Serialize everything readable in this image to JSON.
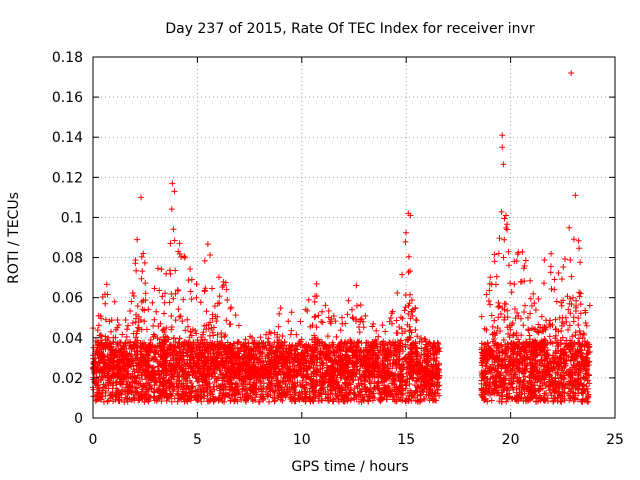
{
  "chart_data": {
    "type": "scatter",
    "title": "Day 237 of 2015, Rate Of TEC Index for receiver invr",
    "xlabel": "GPS time / hours",
    "ylabel": "ROTI / TECUs",
    "xlim": [
      0,
      25
    ],
    "ylim": [
      0,
      0.18
    ],
    "xticks": [
      "0",
      "5",
      "10",
      "15",
      "20",
      "25"
    ],
    "yticks": [
      "0",
      "0.02",
      "0.04",
      "0.06",
      "0.08",
      "0.1",
      "0.12",
      "0.14",
      "0.16",
      "0.18"
    ],
    "xtick_values": [
      0,
      5,
      10,
      15,
      20,
      25
    ],
    "ytick_values": [
      0,
      0.02,
      0.04,
      0.06,
      0.08,
      0.1,
      0.12,
      0.14,
      0.16,
      0.18
    ],
    "grid": true,
    "marker": "+",
    "color": "#ff0000",
    "segments": [
      {
        "start": 0.0,
        "end": 16.6
      },
      {
        "start": 18.6,
        "end": 23.8
      }
    ],
    "envelope": [
      [
        0.0,
        0.045
      ],
      [
        0.3,
        0.07
      ],
      [
        0.8,
        0.07
      ],
      [
        1.2,
        0.05
      ],
      [
        1.8,
        0.06
      ],
      [
        2.1,
        0.095
      ],
      [
        2.3,
        0.105
      ],
      [
        2.6,
        0.06
      ],
      [
        3.1,
        0.08
      ],
      [
        3.5,
        0.09
      ],
      [
        3.8,
        0.115
      ],
      [
        4.2,
        0.085
      ],
      [
        4.7,
        0.075
      ],
      [
        5.2,
        0.07
      ],
      [
        5.5,
        0.09
      ],
      [
        5.8,
        0.075
      ],
      [
        6.4,
        0.07
      ],
      [
        7.0,
        0.05
      ],
      [
        7.5,
        0.045
      ],
      [
        8.0,
        0.04
      ],
      [
        9.0,
        0.055
      ],
      [
        9.5,
        0.06
      ],
      [
        10.0,
        0.05
      ],
      [
        10.6,
        0.07
      ],
      [
        11.2,
        0.055
      ],
      [
        12.0,
        0.05
      ],
      [
        12.5,
        0.073
      ],
      [
        13.2,
        0.045
      ],
      [
        14.2,
        0.055
      ],
      [
        15.1,
        0.1
      ],
      [
        15.6,
        0.045
      ],
      [
        16.5,
        0.035
      ],
      [
        18.7,
        0.055
      ],
      [
        19.3,
        0.09
      ],
      [
        19.6,
        0.14
      ],
      [
        20.0,
        0.08
      ],
      [
        20.5,
        0.09
      ],
      [
        21.0,
        0.07
      ],
      [
        21.5,
        0.08
      ],
      [
        22.2,
        0.085
      ],
      [
        22.8,
        0.1
      ],
      [
        23.1,
        0.11
      ],
      [
        23.5,
        0.07
      ],
      [
        23.8,
        0.06
      ]
    ],
    "outliers": [
      {
        "x": 22.9,
        "y": 0.172
      },
      {
        "x": 19.6,
        "y": 0.141
      },
      {
        "x": 19.6,
        "y": 0.135
      },
      {
        "x": 15.1,
        "y": 0.102
      },
      {
        "x": 15.2,
        "y": 0.101
      },
      {
        "x": 3.8,
        "y": 0.117
      },
      {
        "x": 3.9,
        "y": 0.113
      },
      {
        "x": 2.3,
        "y": 0.11
      },
      {
        "x": 23.1,
        "y": 0.111
      }
    ]
  }
}
